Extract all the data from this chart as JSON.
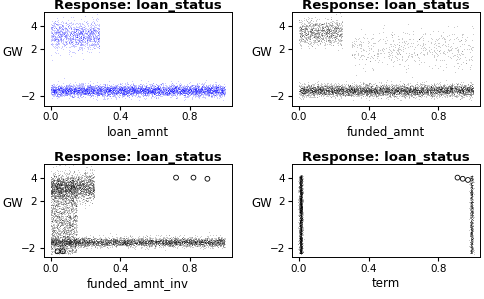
{
  "title": "Response: loan_status",
  "ylabel": "GW",
  "panels": [
    {
      "xlabel": "loan_amnt",
      "color": "#0000FF"
    },
    {
      "xlabel": "funded_amnt",
      "color": "#000000"
    },
    {
      "xlabel": "funded_amnt_inv",
      "color": "#000000"
    },
    {
      "xlabel": "term",
      "color": "#000000"
    }
  ],
  "xlim": [
    -0.04,
    1.04
  ],
  "ylim": [
    -2.8,
    5.2
  ],
  "yticks": [
    -2,
    2,
    4
  ],
  "xticks": [
    0.0,
    0.4,
    0.8
  ],
  "background": "#FFFFFF",
  "title_fontsize": 9.5,
  "label_fontsize": 8.5,
  "tick_fontsize": 7.5
}
